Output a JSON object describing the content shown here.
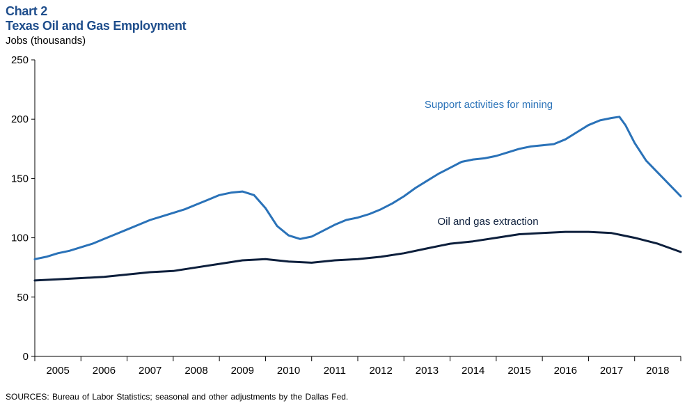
{
  "header": {
    "chart_number": "Chart 2",
    "title": "Texas Oil and Gas Employment",
    "unit_label": "Jobs (thousands)"
  },
  "source": "SOURCES: Bureau of Labor Statistics; seasonal and other adjustments by the Dallas Fed.",
  "colors": {
    "title": "#1f4e8c",
    "support": "#2a72b8",
    "extraction": "#0d1f3c",
    "axis": "#000000"
  },
  "chart_data": {
    "type": "line",
    "title": "Texas Oil and Gas Employment",
    "ylabel": "Jobs (thousands)",
    "xlabel": "",
    "ylim": [
      0,
      250
    ],
    "yticks": [
      0,
      50,
      100,
      150,
      200,
      250
    ],
    "xlim": [
      2004.75,
      2018.75
    ],
    "year_labels": [
      "2005",
      "2006",
      "2007",
      "2008",
      "2009",
      "2010",
      "2011",
      "2012",
      "2013",
      "2014",
      "2015",
      "2016",
      "2017",
      "2018"
    ],
    "grid": false,
    "series": [
      {
        "name": "Support activities for mining",
        "label": "Support activities for mining",
        "color": "#2a72b8",
        "points": [
          [
            2004.75,
            82
          ],
          [
            2005.0,
            84
          ],
          [
            2005.25,
            87
          ],
          [
            2005.5,
            89
          ],
          [
            2005.75,
            92
          ],
          [
            2006.0,
            95
          ],
          [
            2006.25,
            99
          ],
          [
            2006.5,
            103
          ],
          [
            2006.75,
            107
          ],
          [
            2007.0,
            111
          ],
          [
            2007.25,
            115
          ],
          [
            2007.5,
            118
          ],
          [
            2007.75,
            121
          ],
          [
            2008.0,
            124
          ],
          [
            2008.25,
            128
          ],
          [
            2008.5,
            132
          ],
          [
            2008.75,
            136
          ],
          [
            2009.0,
            138
          ],
          [
            2009.25,
            139
          ],
          [
            2009.5,
            136
          ],
          [
            2009.75,
            125
          ],
          [
            2010.0,
            110
          ],
          [
            2010.25,
            102
          ],
          [
            2010.5,
            99
          ],
          [
            2010.75,
            101
          ],
          [
            2011.0,
            106
          ],
          [
            2011.25,
            111
          ],
          [
            2011.5,
            115
          ],
          [
            2011.75,
            117
          ],
          [
            2012.0,
            120
          ],
          [
            2012.25,
            124
          ],
          [
            2012.5,
            129
          ],
          [
            2012.75,
            135
          ],
          [
            2013.0,
            142
          ],
          [
            2013.25,
            148
          ],
          [
            2013.5,
            154
          ],
          [
            2013.75,
            159
          ],
          [
            2014.0,
            164
          ],
          [
            2014.25,
            166
          ],
          [
            2014.5,
            167
          ],
          [
            2014.75,
            169
          ],
          [
            2015.0,
            172
          ],
          [
            2015.25,
            175
          ],
          [
            2015.5,
            177
          ],
          [
            2015.75,
            178
          ],
          [
            2016.0,
            179
          ],
          [
            2016.25,
            183
          ],
          [
            2016.5,
            189
          ],
          [
            2016.75,
            195
          ],
          [
            2017.0,
            199
          ],
          [
            2017.25,
            201
          ],
          [
            2017.42,
            202
          ],
          [
            2017.55,
            195
          ],
          [
            2017.75,
            180
          ],
          [
            2018.0,
            165
          ],
          [
            2018.25,
            155
          ],
          [
            2018.5,
            145
          ],
          [
            2018.75,
            135
          ]
        ],
        "note": "coordinates in [year_position, thousands]"
      },
      {
        "name": "Oil and gas extraction",
        "label": "Oil and gas extraction",
        "color": "#0d1f3c",
        "points": [
          [
            2004.75,
            64
          ],
          [
            2005.25,
            65
          ],
          [
            2005.75,
            66
          ],
          [
            2006.25,
            67
          ],
          [
            2006.75,
            69
          ],
          [
            2007.25,
            71
          ],
          [
            2007.75,
            72
          ],
          [
            2008.25,
            75
          ],
          [
            2008.75,
            78
          ],
          [
            2009.25,
            81
          ],
          [
            2009.75,
            82
          ],
          [
            2010.25,
            80
          ],
          [
            2010.75,
            79
          ],
          [
            2011.25,
            81
          ],
          [
            2011.75,
            82
          ],
          [
            2012.25,
            84
          ],
          [
            2012.75,
            87
          ],
          [
            2013.25,
            91
          ],
          [
            2013.75,
            95
          ],
          [
            2014.25,
            97
          ],
          [
            2014.75,
            100
          ],
          [
            2015.25,
            103
          ],
          [
            2015.75,
            104
          ],
          [
            2016.25,
            105
          ],
          [
            2016.75,
            105
          ],
          [
            2017.25,
            104
          ],
          [
            2017.75,
            100
          ],
          [
            2018.25,
            95
          ],
          [
            2018.75,
            88
          ]
        ]
      }
    ]
  }
}
